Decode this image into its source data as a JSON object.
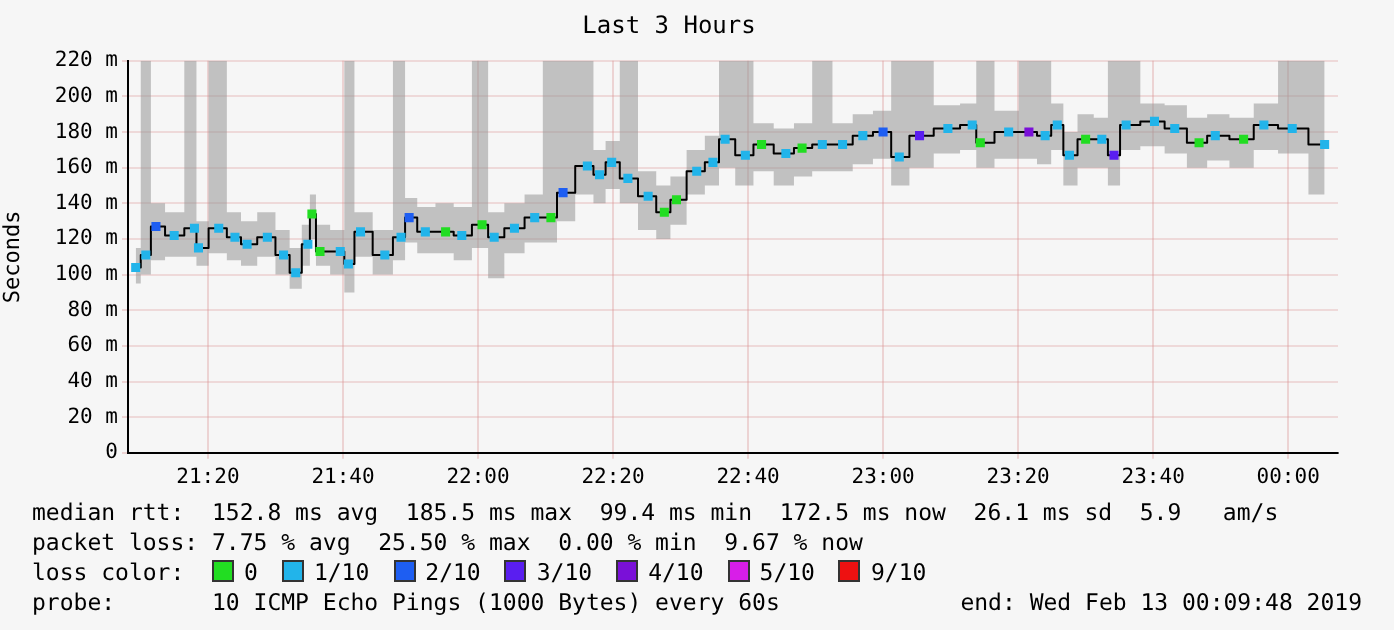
{
  "chart_data": {
    "type": "step",
    "title": "Last 3 Hours",
    "ylabel": "Seconds",
    "legend_title": "loss color:",
    "legend": "bottom",
    "grid": true,
    "xlim": [
      21.136,
      24.123
    ],
    "xticks": [
      {
        "value": 21.3333,
        "label": "21:20"
      },
      {
        "value": 21.6667,
        "label": "21:40"
      },
      {
        "value": 22,
        "label": "22:00"
      },
      {
        "value": 22.3333,
        "label": "22:20"
      },
      {
        "value": 22.6667,
        "label": "22:40"
      },
      {
        "value": 23,
        "label": "23:00"
      },
      {
        "value": 23.3333,
        "label": "23:20"
      },
      {
        "value": 23.6667,
        "label": "23:40"
      },
      {
        "value": 24,
        "label": "00:00"
      }
    ],
    "ylim": [
      0,
      220
    ],
    "yticks": [
      0,
      {
        "value": 20,
        "label": "20 m"
      },
      {
        "value": 40,
        "label": "40 m"
      },
      {
        "value": 60,
        "label": "60 m"
      },
      {
        "value": 80,
        "label": "80 m"
      },
      {
        "value": 100,
        "label": "100 m"
      },
      {
        "value": 120,
        "label": "120 m"
      },
      {
        "value": 140,
        "label": "140 m"
      },
      {
        "value": 160,
        "label": "160 m"
      },
      {
        "value": 180,
        "label": "180 m"
      },
      {
        "value": 200,
        "label": "200 m"
      },
      {
        "value": 220,
        "label": "220 m"
      }
    ],
    "x": [
      21.155,
      21.18,
      21.205,
      21.25,
      21.3,
      21.31,
      21.36,
      21.4,
      21.43,
      21.48,
      21.52,
      21.55,
      21.58,
      21.59,
      21.61,
      21.66,
      21.68,
      21.71,
      21.77,
      21.81,
      21.83,
      21.87,
      21.92,
      21.96,
      22.01,
      22.04,
      22.09,
      22.14,
      22.18,
      22.21,
      22.27,
      22.3,
      22.33,
      22.37,
      22.42,
      22.46,
      22.49,
      22.54,
      22.58,
      22.61,
      22.66,
      22.7,
      22.76,
      22.8,
      22.85,
      22.9,
      22.95,
      23.0,
      23.04,
      23.09,
      23.16,
      23.22,
      23.24,
      23.31,
      23.36,
      23.4,
      23.43,
      23.46,
      23.5,
      23.54,
      23.57,
      23.6,
      23.67,
      23.72,
      23.78,
      23.82,
      23.89,
      23.94,
      24.01,
      24.09
    ],
    "series": [
      {
        "color": "#000000",
        "values": [
          104,
          111,
          127,
          122,
          126,
          115,
          126,
          121,
          117,
          121,
          111,
          101,
          117,
          134,
          113,
          113,
          106,
          124,
          111,
          121,
          132,
          124,
          124,
          122,
          128,
          121,
          126,
          132,
          132,
          146,
          161,
          156,
          163,
          154,
          144,
          135,
          142,
          158,
          163,
          176,
          167,
          173,
          168,
          171,
          173,
          173,
          178,
          180,
          166,
          178,
          182,
          184,
          174,
          180,
          180,
          178,
          184,
          167,
          176,
          176,
          167,
          184,
          186,
          182,
          174,
          178,
          176,
          184,
          182,
          173
        ],
        "upper": [
          115,
          220,
          140,
          135,
          220,
          130,
          220,
          135,
          130,
          135,
          125,
          115,
          128,
          145,
          128,
          125,
          220,
          135,
          125,
          220,
          143,
          138,
          140,
          138,
          220,
          135,
          140,
          145,
          220,
          220,
          220,
          170,
          175,
          220,
          158,
          150,
          155,
          170,
          178,
          220,
          220,
          185,
          182,
          185,
          220,
          185,
          190,
          192,
          220,
          220,
          195,
          196,
          220,
          192,
          220,
          220,
          196,
          180,
          190,
          188,
          220,
          220,
          196,
          195,
          188,
          190,
          188,
          196,
          220,
          220
        ],
        "lower": [
          95,
          100,
          108,
          110,
          110,
          105,
          112,
          108,
          105,
          110,
          100,
          92,
          105,
          120,
          105,
          100,
          90,
          110,
          100,
          108,
          118,
          112,
          112,
          108,
          115,
          98,
          112,
          118,
          118,
          130,
          145,
          140,
          148,
          140,
          125,
          120,
          128,
          145,
          150,
          160,
          150,
          158,
          150,
          155,
          158,
          158,
          162,
          165,
          150,
          160,
          168,
          170,
          160,
          165,
          165,
          162,
          170,
          150,
          160,
          160,
          150,
          170,
          172,
          168,
          160,
          164,
          160,
          170,
          168,
          145
        ]
      },
      {
        "type": "scatter",
        "marker": "square",
        "name": "0",
        "color": "#22dd22",
        "x": [
          21.59,
          21.61,
          21.92,
          22.01,
          22.18,
          22.46,
          22.49,
          22.7,
          22.8,
          23.24,
          23.5,
          23.78,
          23.89
        ],
        "values": [
          134,
          113,
          124,
          128,
          132,
          135,
          142,
          173,
          171,
          174,
          176,
          174,
          176
        ]
      },
      {
        "type": "scatter",
        "marker": "square",
        "name": "1/10",
        "color": "#22b4ea",
        "x": [
          21.155,
          21.18,
          21.25,
          21.3,
          21.31,
          21.36,
          21.4,
          21.43,
          21.48,
          21.52,
          21.55,
          21.58,
          21.66,
          21.68,
          21.71,
          21.77,
          21.81,
          21.87,
          21.96,
          22.04,
          22.09,
          22.14,
          22.27,
          22.3,
          22.33,
          22.37,
          22.42,
          22.54,
          22.58,
          22.61,
          22.66,
          22.76,
          22.85,
          22.9,
          22.95,
          23.04,
          23.16,
          23.22,
          23.31,
          23.4,
          23.43,
          23.46,
          23.54,
          23.6,
          23.67,
          23.72,
          23.82,
          23.94,
          24.01,
          24.09
        ],
        "values": [
          104,
          111,
          122,
          126,
          115,
          126,
          121,
          117,
          121,
          111,
          101,
          117,
          113,
          106,
          124,
          111,
          121,
          124,
          122,
          121,
          126,
          132,
          161,
          156,
          163,
          154,
          144,
          158,
          163,
          176,
          167,
          168,
          173,
          173,
          178,
          166,
          182,
          184,
          180,
          178,
          184,
          167,
          176,
          184,
          186,
          182,
          178,
          184,
          182,
          173
        ]
      },
      {
        "type": "scatter",
        "marker": "square",
        "name": "2/10",
        "color": "#1e5ef2",
        "x": [
          21.205,
          21.83,
          22.21,
          23.0
        ],
        "values": [
          127,
          132,
          146,
          180
        ]
      },
      {
        "type": "scatter",
        "marker": "square",
        "name": "3/10",
        "color": "#5a1ef0",
        "x": [
          23.09,
          23.57
        ],
        "values": [
          178,
          167
        ]
      },
      {
        "type": "scatter",
        "marker": "square",
        "name": "4/10",
        "color": "#7a10d8",
        "x": [
          23.36
        ],
        "values": [
          180
        ]
      },
      {
        "type": "scatter",
        "marker": "square",
        "name": "5/10",
        "color": "#d81ee8",
        "values": [
          null,
          null,
          null,
          null,
          null,
          null,
          null,
          null,
          null,
          null,
          null,
          null,
          null,
          null,
          null,
          null,
          null,
          null,
          null,
          null,
          null,
          null,
          null,
          null,
          null,
          null,
          null,
          null,
          null,
          null,
          null,
          null,
          null,
          null,
          null,
          null,
          null,
          null,
          null,
          null,
          null,
          null,
          null,
          null,
          null,
          null,
          null,
          null,
          null,
          null,
          null,
          null,
          null,
          null,
          null,
          null,
          null,
          null,
          null,
          null,
          null,
          null,
          null,
          null,
          null,
          null,
          null,
          null,
          null,
          null
        ]
      },
      {
        "type": "scatter",
        "marker": "square",
        "name": "9/10",
        "color": "#ee1111",
        "values": [
          null,
          null,
          null,
          null,
          null,
          null,
          null,
          null,
          null,
          null,
          null,
          null,
          null,
          null,
          null,
          null,
          null,
          null,
          null,
          null,
          null,
          null,
          null,
          null,
          null,
          null,
          null,
          null,
          null,
          null,
          null,
          null,
          null,
          null,
          null,
          null,
          null,
          null,
          null,
          null,
          null,
          null,
          null,
          null,
          null,
          null,
          null,
          null,
          null,
          null,
          null,
          null,
          null,
          null,
          null,
          null,
          null,
          null,
          null,
          null,
          null,
          null,
          null,
          null,
          null,
          null,
          null,
          null,
          null,
          null
        ]
      }
    ],
    "annotations": [
      "median rtt:  152.8 ms avg  185.5 ms max  99.4 ms min  172.5 ms now  26.1 ms sd  5.9   am/s",
      "packet loss: 7.75 % avg  25.50 % max  0.00 % min  9.67 % now",
      "probe:       10 ICMP Echo Pings (1000 Bytes) every 60s",
      "end: Wed Feb 13 00:09:48 2019"
    ]
  }
}
